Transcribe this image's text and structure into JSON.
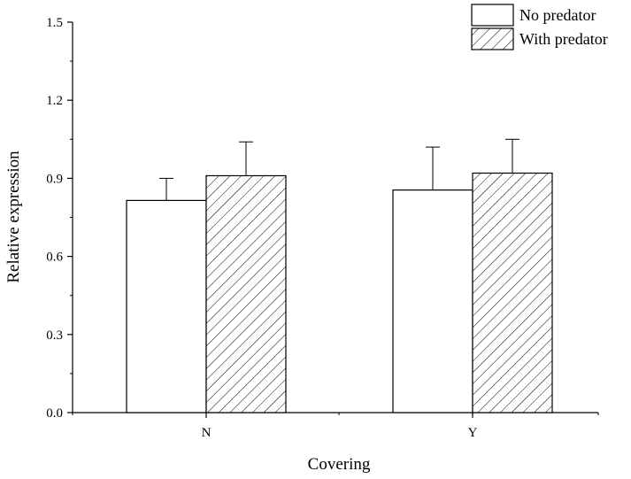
{
  "chart_data": {
    "type": "bar",
    "title": "",
    "xlabel": "Covering",
    "ylabel": "Relative expression",
    "categories": [
      "N",
      "Y"
    ],
    "ylim": [
      0,
      1.5
    ],
    "yticks": [
      "0.0",
      "0.3",
      "0.6",
      "0.9",
      "1.2",
      "1.5"
    ],
    "grid": false,
    "legend_position": "top-right",
    "series": [
      {
        "name": "No predator",
        "values": [
          0.815,
          0.855
        ],
        "error": [
          0.085,
          0.165
        ],
        "fill": "#ffffff",
        "pattern": "none"
      },
      {
        "name": "With predator",
        "values": [
          0.91,
          0.92
        ],
        "error": [
          0.13,
          0.13
        ],
        "fill": "#ffffff",
        "pattern": "diagonal-hatch"
      }
    ]
  }
}
